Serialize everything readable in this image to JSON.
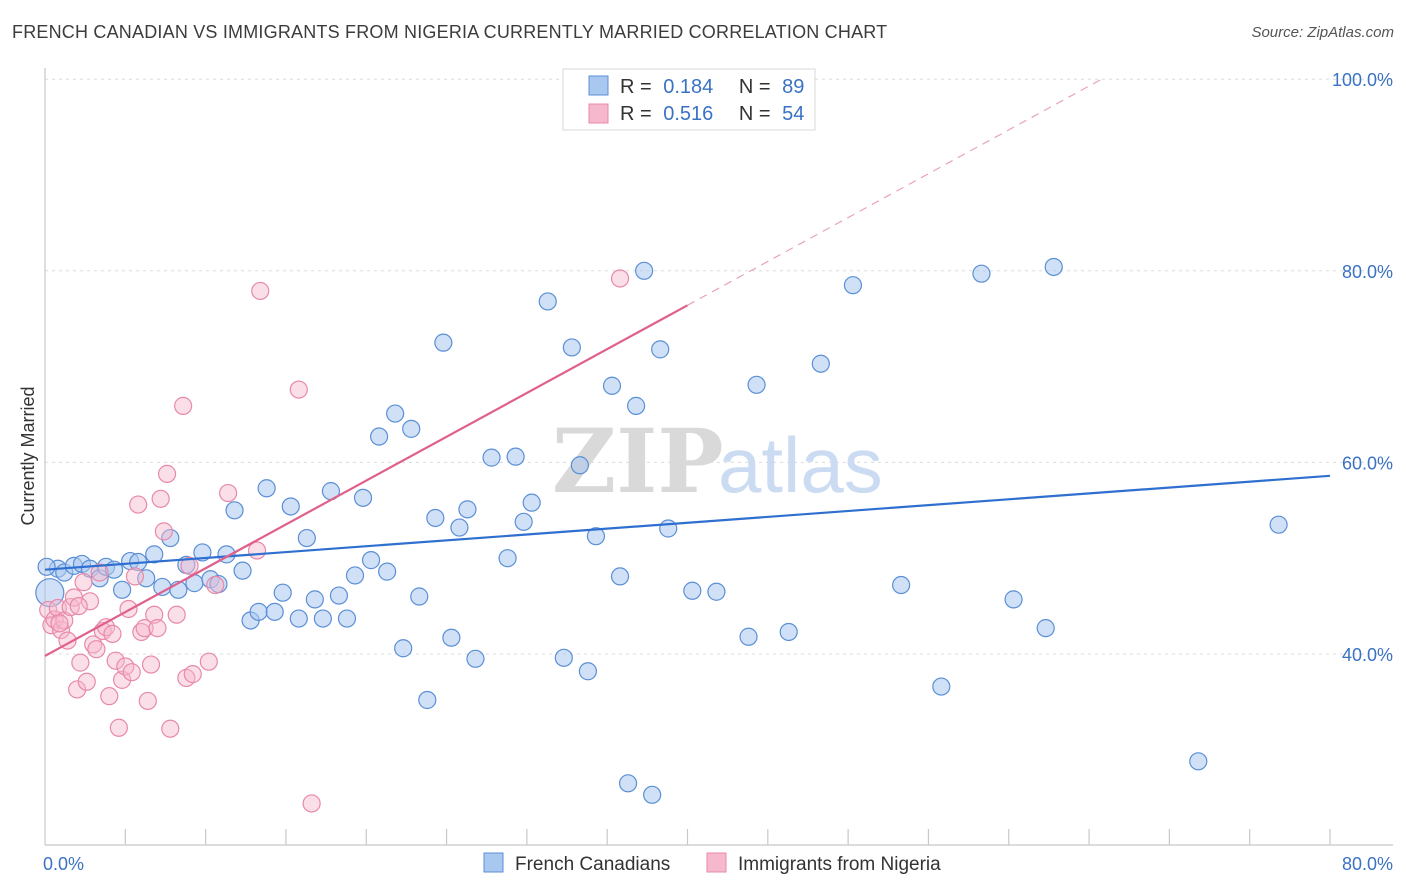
{
  "title": "FRENCH CANADIAN VS IMMIGRANTS FROM NIGERIA CURRENTLY MARRIED CORRELATION CHART",
  "source": "Source: ZipAtlas.com",
  "colors": {
    "blue_fill": "#a9c8f0",
    "blue_stroke": "#5b8fd6",
    "blue_line": "#2f6fcf",
    "pink_fill": "#f6b8cc",
    "pink_stroke": "#e889a8",
    "pink_line": "#e0608c",
    "axis_text": "#3a72c4",
    "grid": "#d8d8d8"
  },
  "legend": {
    "rows": [
      {
        "r_label": "R =",
        "r_value": "0.184",
        "n_label": "N =",
        "n_value": "89"
      },
      {
        "r_label": "R =",
        "r_value": "0.516",
        "n_label": "N =",
        "n_value": "54"
      }
    ]
  },
  "watermark": {
    "zip": "ZIP",
    "atlas": "atlas"
  },
  "chart_data": {
    "type": "scatter",
    "title": "FRENCH CANADIAN VS IMMIGRANTS FROM NIGERIA CURRENTLY MARRIED CORRELATION CHART",
    "xlabel": "",
    "ylabel": "Currently Married",
    "xlim": [
      0,
      80
    ],
    "ylim": [
      19,
      102
    ],
    "x_tick_labels": [
      "0.0%",
      "80.0%"
    ],
    "y_ticks": [
      40,
      60,
      80,
      100
    ],
    "y_tick_labels": [
      "40.0%",
      "60.0%",
      "80.0%",
      "100.0%"
    ],
    "legend_position": "top-center",
    "series": [
      {
        "name": "French Canadians",
        "color": "#5b8fd6",
        "R": 0.184,
        "N": 89,
        "trend": {
          "x0": 0,
          "y0": 48.8,
          "x1": 80,
          "y1": 58.6
        },
        "points": [
          [
            0.3,
            46.4
          ],
          [
            0.8,
            48.9
          ],
          [
            1.2,
            48.5
          ],
          [
            1.8,
            49.2
          ],
          [
            2.3,
            49.4
          ],
          [
            2.8,
            48.9
          ],
          [
            3.4,
            47.9
          ],
          [
            3.8,
            49.1
          ],
          [
            4.3,
            48.8
          ],
          [
            4.8,
            46.7
          ],
          [
            5.3,
            49.7
          ],
          [
            5.8,
            49.6
          ],
          [
            6.3,
            47.9
          ],
          [
            6.8,
            50.4
          ],
          [
            7.3,
            47.0
          ],
          [
            7.8,
            52.1
          ],
          [
            8.3,
            46.7
          ],
          [
            8.8,
            49.3
          ],
          [
            9.3,
            47.4
          ],
          [
            9.8,
            50.6
          ],
          [
            10.3,
            47.8
          ],
          [
            10.8,
            47.3
          ],
          [
            11.3,
            50.4
          ],
          [
            11.8,
            55.0
          ],
          [
            12.3,
            48.7
          ],
          [
            12.8,
            43.5
          ],
          [
            13.3,
            44.4
          ],
          [
            13.8,
            57.3
          ],
          [
            14.3,
            44.4
          ],
          [
            14.8,
            46.4
          ],
          [
            15.3,
            55.4
          ],
          [
            15.8,
            43.7
          ],
          [
            16.3,
            52.1
          ],
          [
            16.8,
            45.7
          ],
          [
            17.3,
            43.7
          ],
          [
            17.8,
            57.0
          ],
          [
            18.3,
            46.1
          ],
          [
            18.8,
            43.7
          ],
          [
            19.3,
            48.2
          ],
          [
            19.8,
            56.3
          ],
          [
            20.3,
            49.8
          ],
          [
            20.8,
            62.7
          ],
          [
            21.3,
            48.6
          ],
          [
            21.8,
            65.1
          ],
          [
            22.3,
            40.6
          ],
          [
            22.8,
            63.5
          ],
          [
            23.3,
            46.0
          ],
          [
            23.8,
            35.2
          ],
          [
            24.3,
            54.2
          ],
          [
            24.8,
            72.5
          ],
          [
            25.3,
            41.7
          ],
          [
            25.8,
            53.2
          ],
          [
            26.3,
            55.1
          ],
          [
            26.8,
            39.5
          ],
          [
            27.8,
            60.5
          ],
          [
            28.8,
            50.0
          ],
          [
            29.3,
            60.6
          ],
          [
            29.8,
            53.8
          ],
          [
            30.3,
            55.8
          ],
          [
            31.3,
            76.8
          ],
          [
            32.3,
            39.6
          ],
          [
            32.8,
            72.0
          ],
          [
            33.3,
            59.7
          ],
          [
            33.8,
            38.2
          ],
          [
            34.3,
            52.3
          ],
          [
            35.3,
            68.0
          ],
          [
            35.8,
            48.1
          ],
          [
            36.3,
            26.5
          ],
          [
            36.8,
            65.9
          ],
          [
            37.3,
            80.0
          ],
          [
            37.8,
            25.3
          ],
          [
            38.3,
            71.8
          ],
          [
            38.8,
            53.1
          ],
          [
            40.3,
            46.6
          ],
          [
            41.8,
            46.5
          ],
          [
            43.8,
            41.8
          ],
          [
            44.3,
            68.1
          ],
          [
            46.3,
            42.3
          ],
          [
            48.3,
            70.3
          ],
          [
            50.3,
            78.5
          ],
          [
            53.3,
            47.2
          ],
          [
            55.8,
            36.6
          ],
          [
            58.3,
            79.7
          ],
          [
            60.3,
            45.7
          ],
          [
            62.3,
            42.7
          ],
          [
            62.8,
            80.4
          ],
          [
            71.8,
            28.8
          ],
          [
            76.8,
            53.5
          ],
          [
            0.1,
            49.1
          ]
        ]
      },
      {
        "name": "Immigrants from Nigeria",
        "color": "#e889a8",
        "R": 0.516,
        "N": 54,
        "trend": {
          "x0": 0,
          "y0": 39.8,
          "x1": 40,
          "y1": 76.4,
          "dash_x1": 66,
          "dash_y1": 100.2
        },
        "points": [
          [
            0.2,
            44.6
          ],
          [
            0.4,
            43.0
          ],
          [
            0.6,
            43.6
          ],
          [
            0.8,
            44.8
          ],
          [
            1.0,
            42.5
          ],
          [
            1.2,
            43.5
          ],
          [
            1.4,
            41.4
          ],
          [
            1.6,
            44.9
          ],
          [
            1.8,
            45.9
          ],
          [
            2.0,
            36.3
          ],
          [
            2.2,
            39.1
          ],
          [
            2.4,
            47.5
          ],
          [
            2.6,
            37.1
          ],
          [
            2.8,
            45.5
          ],
          [
            3.0,
            41.0
          ],
          [
            3.2,
            40.5
          ],
          [
            3.4,
            48.5
          ],
          [
            3.6,
            42.4
          ],
          [
            3.8,
            42.8
          ],
          [
            4.0,
            35.6
          ],
          [
            4.2,
            42.1
          ],
          [
            4.4,
            39.3
          ],
          [
            4.6,
            32.3
          ],
          [
            4.8,
            37.3
          ],
          [
            5.0,
            38.7
          ],
          [
            5.2,
            44.7
          ],
          [
            5.4,
            38.1
          ],
          [
            5.6,
            48.1
          ],
          [
            5.8,
            55.6
          ],
          [
            6.0,
            42.3
          ],
          [
            6.2,
            42.7
          ],
          [
            6.4,
            35.1
          ],
          [
            6.6,
            38.9
          ],
          [
            6.8,
            44.1
          ],
          [
            7.0,
            42.7
          ],
          [
            7.2,
            56.2
          ],
          [
            7.4,
            52.8
          ],
          [
            7.6,
            58.8
          ],
          [
            7.8,
            32.2
          ],
          [
            8.2,
            44.1
          ],
          [
            8.6,
            65.9
          ],
          [
            8.8,
            37.5
          ],
          [
            9.0,
            49.2
          ],
          [
            9.2,
            37.9
          ],
          [
            10.2,
            39.2
          ],
          [
            10.6,
            47.2
          ],
          [
            11.4,
            56.8
          ],
          [
            13.2,
            50.8
          ],
          [
            13.4,
            77.9
          ],
          [
            15.8,
            67.6
          ],
          [
            16.6,
            24.4
          ],
          [
            35.8,
            79.2
          ],
          [
            0.9,
            43.2
          ],
          [
            2.1,
            45.0
          ]
        ]
      }
    ]
  },
  "bottom_legend": {
    "items": [
      {
        "label": "French Canadians"
      },
      {
        "label": "Immigrants from Nigeria"
      }
    ]
  }
}
